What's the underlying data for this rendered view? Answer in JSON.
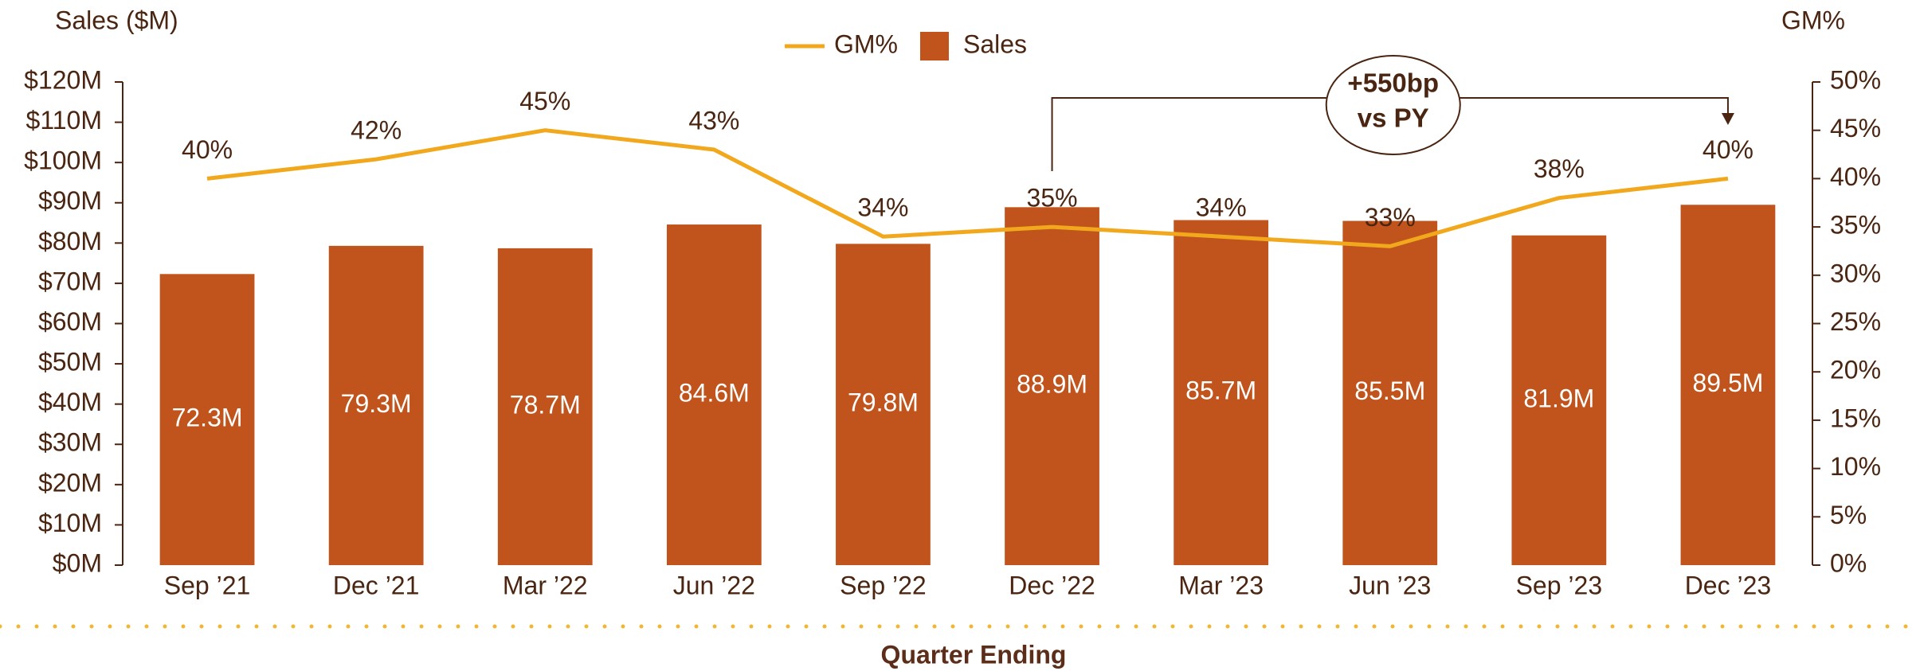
{
  "chart_data": {
    "type": "combo",
    "title": "Sales ($M)",
    "y2_title": "GM%",
    "x_title": "Quarter Ending",
    "categories": [
      "Sep ’21",
      "Dec ’21",
      "Mar ’22",
      "Jun ’22",
      "Sep ’22",
      "Dec ’22",
      "Mar ’23",
      "Jun ’23",
      "Sep ’23",
      "Dec ’23"
    ],
    "series": [
      {
        "name": "GM%",
        "type": "line",
        "axis": "y2",
        "color": "#f2a81d",
        "values": [
          40,
          42,
          45,
          43,
          34,
          35,
          34,
          33,
          38,
          40
        ],
        "value_labels": [
          "40%",
          "42%",
          "45%",
          "43%",
          "34%",
          "35%",
          "34%",
          "33%",
          "38%",
          "40%"
        ]
      },
      {
        "name": "Sales",
        "type": "bar",
        "color": "#c0541c",
        "values": [
          72.3,
          79.3,
          78.7,
          84.6,
          79.8,
          88.9,
          85.7,
          85.5,
          81.9,
          89.5
        ],
        "value_labels": [
          "72.3M",
          "79.3M",
          "78.7M",
          "84.6M",
          "79.8M",
          "88.9M",
          "85.7M",
          "85.5M",
          "81.9M",
          "89.5M"
        ]
      }
    ],
    "ylim": [
      0,
      120
    ],
    "yticks": [
      {
        "value": 0,
        "label": "$0M"
      },
      {
        "value": 10,
        "label": "$10M"
      },
      {
        "value": 20,
        "label": "$20M"
      },
      {
        "value": 30,
        "label": "$30M"
      },
      {
        "value": 40,
        "label": "$40M"
      },
      {
        "value": 50,
        "label": "$50M"
      },
      {
        "value": 60,
        "label": "$60M"
      },
      {
        "value": 70,
        "label": "$70M"
      },
      {
        "value": 80,
        "label": "$80M"
      },
      {
        "value": 90,
        "label": "$90M"
      },
      {
        "value": 100,
        "label": "$100M"
      },
      {
        "value": 110,
        "label": "$110M"
      },
      {
        "value": 120,
        "label": "$120M"
      }
    ],
    "y2lim": [
      0,
      50
    ],
    "y2ticks": [
      {
        "value": 0,
        "label": "0%"
      },
      {
        "value": 5,
        "label": "5%"
      },
      {
        "value": 10,
        "label": "10%"
      },
      {
        "value": 15,
        "label": "15%"
      },
      {
        "value": 20,
        "label": "20%"
      },
      {
        "value": 25,
        "label": "25%"
      },
      {
        "value": 30,
        "label": "30%"
      },
      {
        "value": 35,
        "label": "35%"
      },
      {
        "value": 40,
        "label": "40%"
      },
      {
        "value": 45,
        "label": "45%"
      },
      {
        "value": 50,
        "label": "50%"
      }
    ],
    "legend": "top",
    "annotation": [
      "+550bp",
      "vs PY"
    ]
  }
}
